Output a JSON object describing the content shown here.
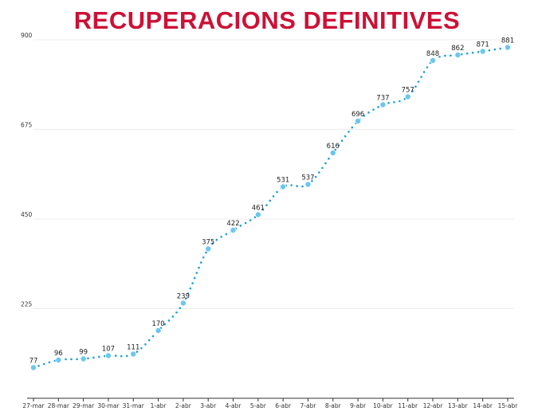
{
  "colors": {
    "title": "#cc1136",
    "line": "#1a9fd4",
    "point": "#6cc7ee",
    "grid": "#ececec",
    "axis": "#333333"
  },
  "chart_data": {
    "type": "line",
    "title": "RECUPERACIONS DEFINITIVES",
    "xlabel": "",
    "ylabel": "",
    "categories": [
      "27-mar",
      "28-mar",
      "29-mar",
      "30-mar",
      "31-mar",
      "1-abr",
      "2-abr",
      "3-abr",
      "4-abr",
      "5-abr",
      "6-abr",
      "7-abr",
      "8-abr",
      "9-abr",
      "10-abr",
      "11-abr",
      "12-abr",
      "13-abr",
      "14-abr",
      "15-abr"
    ],
    "series": [
      {
        "values": [
          77,
          96,
          99,
          107,
          111,
          170,
          239,
          375,
          422,
          461,
          531,
          537,
          616,
          696,
          737,
          757,
          848,
          862,
          871,
          881
        ]
      }
    ],
    "yticks": [
      "0",
      "225",
      "450",
      "675",
      "900"
    ],
    "ylim": [
      0,
      900
    ],
    "grid": true,
    "legend": "none"
  }
}
